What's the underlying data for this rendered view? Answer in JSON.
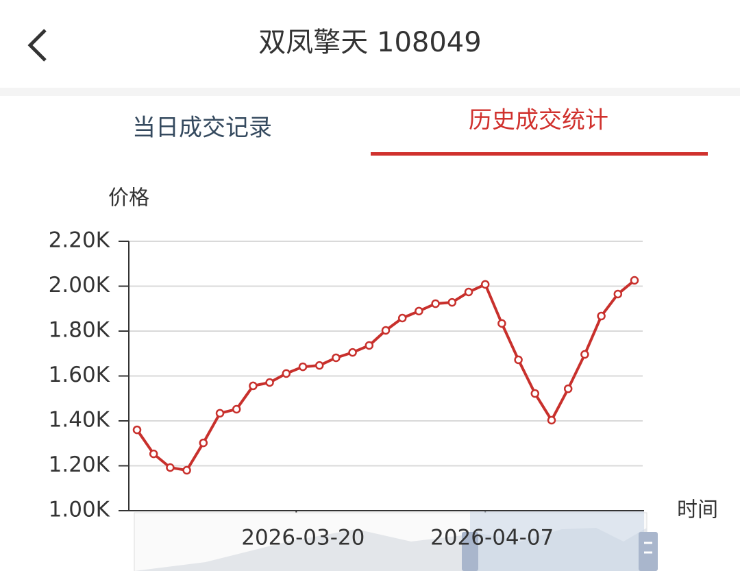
{
  "header": {
    "title": "双凤擎天 108049"
  },
  "tabs": [
    "当日成交记录",
    "历史成交统计"
  ],
  "chart_data": {
    "type": "line",
    "y_label": "价格",
    "x_label": "时间",
    "categories": [
      null,
      null,
      null,
      null,
      null,
      null,
      null,
      null,
      null,
      null,
      null,
      null,
      null,
      null,
      null,
      null,
      null,
      null,
      null,
      null,
      null,
      null,
      null,
      null,
      null,
      null,
      null,
      null,
      null,
      null,
      null
    ],
    "values": [
      1360,
      1253,
      1192,
      1180,
      1302,
      1434,
      1452,
      1556,
      1571,
      1611,
      1641,
      1647,
      1681,
      1705,
      1736,
      1803,
      1858,
      1889,
      1922,
      1928,
      1974,
      2008,
      1834,
      1672,
      1522,
      1403,
      1543,
      1696,
      1867,
      1965,
      2026
    ],
    "color": "#c8302c",
    "ylim": [
      1000,
      2200
    ],
    "yticks": [
      {
        "value": 1000,
        "label": "1.00K"
      },
      {
        "value": 1200,
        "label": "1.20K"
      },
      {
        "value": 1400,
        "label": "1.40K"
      },
      {
        "value": 1600,
        "label": "1.60K"
      },
      {
        "value": 1800,
        "label": "1.80K"
      },
      {
        "value": 2000,
        "label": "2.00K"
      },
      {
        "value": 2200,
        "label": "2.20K"
      }
    ],
    "xticks": [
      {
        "value": 9.6,
        "label": "2026-03-20"
      },
      {
        "value": 21,
        "label": "2026-04-07"
      }
    ],
    "grid": true
  }
}
